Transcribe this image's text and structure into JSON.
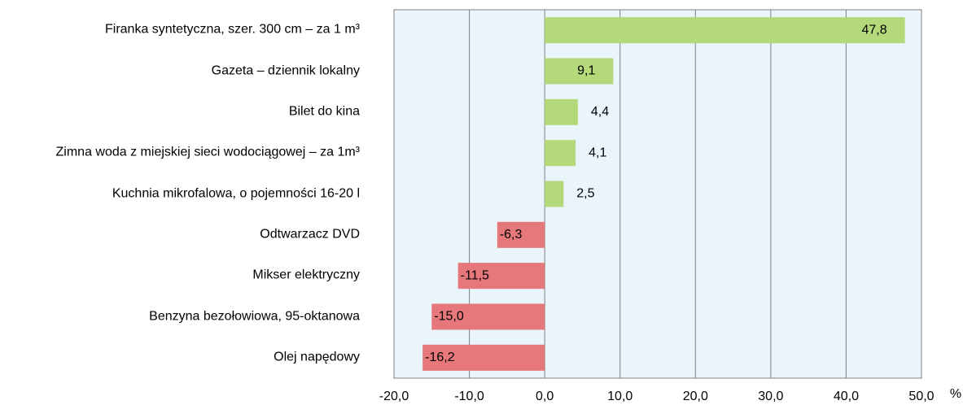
{
  "chart_data": {
    "type": "barh",
    "categories": [
      "Firanka syntetyczna, szer. 300 cm – za 1 m³",
      "Gazeta – dziennik lokalny",
      "Bilet do kina",
      "Zimna woda z miejskiej sieci wodociągowej – za 1m³",
      "Kuchnia mikrofalowa, o pojemności 16-20 l",
      "Odtwarzacz DVD",
      "Mikser elektryczny",
      "Benzyna bezołowiowa, 95-oktanowa",
      "Olej napędowy"
    ],
    "values": [
      47.8,
      9.1,
      4.4,
      4.1,
      2.5,
      -6.3,
      -11.5,
      -15.0,
      -16.2
    ],
    "value_labels": [
      "47,8",
      "9,1",
      "4,4",
      "4,1",
      "2,5",
      "-6,3",
      "-11,5",
      "-15,0",
      "-16,2"
    ],
    "positive_color": "#b3d97a",
    "negative_color": "#e6777a",
    "xlim": [
      -20,
      50
    ],
    "xticks": [
      {
        "value": -20,
        "label": "-20,0"
      },
      {
        "value": -10,
        "label": "-10,0"
      },
      {
        "value": 0,
        "label": "0,0"
      },
      {
        "value": 10,
        "label": "10,0"
      },
      {
        "value": 20,
        "label": "20,0"
      },
      {
        "value": 30,
        "label": "30,0"
      },
      {
        "value": 40,
        "label": "40,0"
      },
      {
        "value": 50,
        "label": "50,0"
      }
    ],
    "x_label": "%",
    "grid": true
  }
}
